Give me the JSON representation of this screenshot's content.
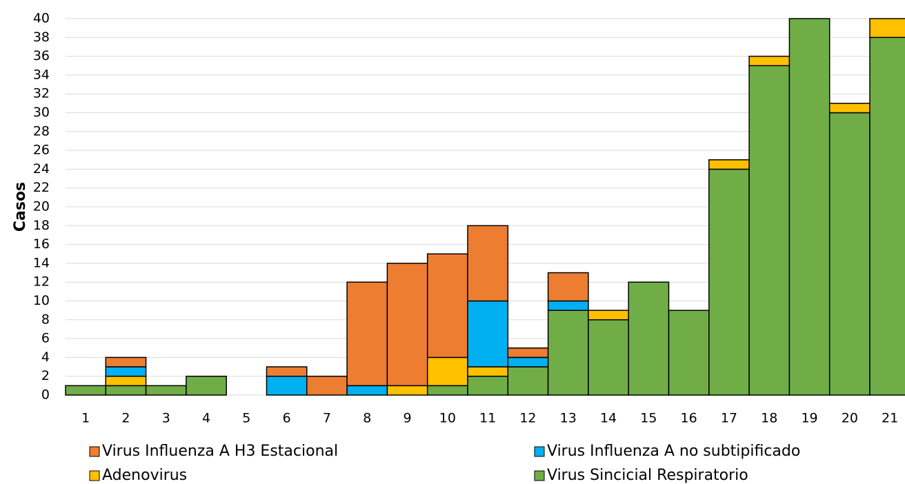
{
  "chart_data": {
    "type": "stacked_bar",
    "ylabel": "Casos",
    "categories": [
      "1",
      "2",
      "3",
      "4",
      "5",
      "6",
      "7",
      "8",
      "9",
      "10",
      "11",
      "12",
      "13",
      "14",
      "15",
      "16",
      "17",
      "18",
      "19",
      "20",
      "21"
    ],
    "series": [
      {
        "name": "Virus Influenza A H3 Estacional",
        "color": "#ed7d31",
        "values": [
          0,
          1,
          0,
          0,
          0,
          1,
          2,
          11,
          13,
          11,
          8,
          1,
          3,
          0,
          0,
          0,
          0,
          0,
          0,
          0,
          0
        ]
      },
      {
        "name": "Virus Influenza A no subtipificado",
        "color": "#00b0f0",
        "values": [
          0,
          1,
          0,
          0,
          0,
          2,
          0,
          1,
          0,
          0,
          7,
          1,
          1,
          0,
          0,
          0,
          0,
          0,
          0,
          0,
          0
        ]
      },
      {
        "name": "Adenovirus",
        "color": "#ffc000",
        "values": [
          0,
          1,
          0,
          0,
          0,
          0,
          0,
          0,
          1,
          3,
          1,
          0,
          0,
          1,
          0,
          0,
          1,
          1,
          0,
          1,
          2
        ]
      },
      {
        "name": "Virus Sincicial Respiratorio",
        "color": "#70ad47",
        "values": [
          1,
          1,
          1,
          2,
          0,
          0,
          0,
          0,
          0,
          1,
          2,
          3,
          9,
          8,
          12,
          9,
          24,
          35,
          40,
          30,
          38
        ]
      }
    ],
    "stack_order": "bottom_up_reverse_legend",
    "ylim": [
      0,
      40
    ],
    "yticks": [
      0,
      2,
      4,
      6,
      8,
      10,
      12,
      14,
      16,
      18,
      20,
      22,
      24,
      26,
      28,
      30,
      32,
      34,
      36,
      38,
      40
    ],
    "grid": true
  }
}
